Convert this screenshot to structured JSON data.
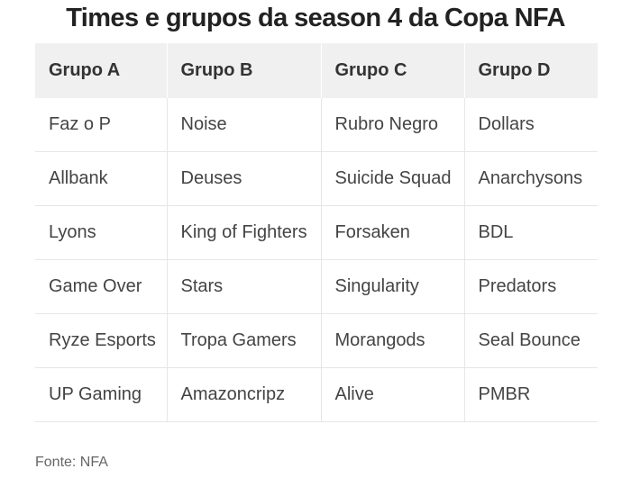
{
  "title": "Times e grupos da season 4 da Copa NFA",
  "table": {
    "headers": [
      "Grupo A",
      "Grupo B",
      "Grupo C",
      "Grupo D"
    ],
    "rows": [
      [
        "Faz o P",
        "Noise",
        "Rubro Negro",
        "Dollars"
      ],
      [
        "Allbank",
        "Deuses",
        "Suicide Squad",
        "Anarchysons"
      ],
      [
        "Lyons",
        "King of Fighters",
        "Forsaken",
        "BDL"
      ],
      [
        "Game Over",
        "Stars",
        "Singularity",
        "Predators"
      ],
      [
        "Ryze Esports",
        "Tropa Gamers",
        "Morangods",
        "Seal Bounce"
      ],
      [
        "UP Gaming",
        "Amazoncripz",
        "Alive",
        "PMBR"
      ]
    ]
  },
  "source": "Fonte: NFA"
}
